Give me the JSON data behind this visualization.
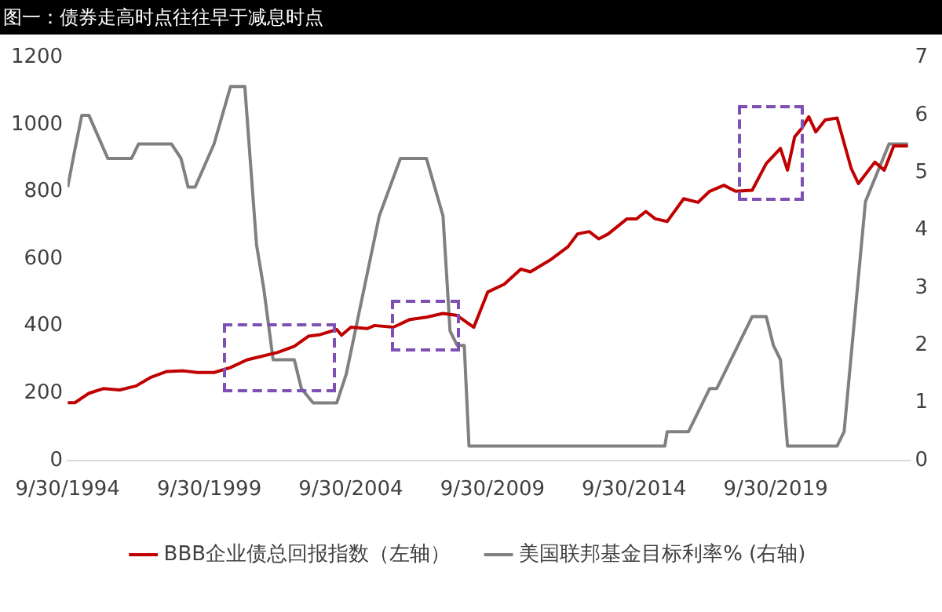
{
  "chart_data": {
    "type": "line",
    "title": "图一：债券走高时点往往早于减息时点",
    "xlim": [
      "1994-09-30",
      "2024-06-30"
    ],
    "xticks": [
      {
        "value": "1994-09-30",
        "label": "9/30/1994"
      },
      {
        "value": "1999-09-30",
        "label": "9/30/1999"
      },
      {
        "value": "2004-09-30",
        "label": "9/30/2004"
      },
      {
        "value": "2009-09-30",
        "label": "9/30/2009"
      },
      {
        "value": "2014-09-30",
        "label": "9/30/2014"
      },
      {
        "value": "2019-09-30",
        "label": "9/30/2019"
      }
    ],
    "ylim": [
      0,
      1200
    ],
    "yticks": [
      0,
      200,
      400,
      600,
      800,
      1000,
      1200
    ],
    "y2lim": [
      0,
      7
    ],
    "y2ticks": [
      0,
      1,
      2,
      3,
      4,
      5,
      6,
      7
    ],
    "grid": false,
    "legend": "bottom",
    "marker": "none",
    "series": [
      {
        "name": "BBB企业债总回报指数（左轴）",
        "color": "#c00000",
        "axis": "y",
        "x": [
          "1994-09-30",
          "1995-01",
          "1995-07",
          "1996-01",
          "1996-08",
          "1997-03",
          "1997-09",
          "1998-04",
          "1998-11",
          "1999-05",
          "1999-12",
          "2000-07",
          "2001-02",
          "2001-08",
          "2002-03",
          "2002-10",
          "2003-04",
          "2003-09",
          "2004-04",
          "2004-06",
          "2004-10",
          "2005-05",
          "2005-08",
          "2006-04",
          "2006-11",
          "2007-06",
          "2008-01",
          "2008-07",
          "2009-02",
          "2009-08",
          "2010-03",
          "2010-10",
          "2011-02",
          "2011-11",
          "2012-06",
          "2012-10",
          "2013-03",
          "2013-07",
          "2013-11",
          "2014-07",
          "2014-11",
          "2015-03",
          "2015-07",
          "2015-12",
          "2016-07",
          "2017-01",
          "2017-06",
          "2017-12",
          "2018-05",
          "2018-12",
          "2019-06",
          "2019-12",
          "2020-03",
          "2020-06",
          "2020-09",
          "2020-12",
          "2021-03",
          "2021-07",
          "2021-12",
          "2022-06",
          "2022-09",
          "2023-04",
          "2023-08",
          "2023-12",
          "2024-06"
        ],
        "values": [
          172,
          172,
          200,
          214,
          210,
          222,
          247,
          265,
          267,
          262,
          262,
          277,
          300,
          310,
          322,
          340,
          370,
          375,
          390,
          373,
          397,
          393,
          402,
          397,
          420,
          427,
          438,
          432,
          397,
          502,
          525,
          570,
          562,
          600,
          637,
          675,
          682,
          660,
          675,
          720,
          720,
          742,
          720,
          712,
          780,
          769,
          802,
          820,
          802,
          805,
          885,
          930,
          865,
          964,
          990,
          1024,
          979,
          1015,
          1020,
          870,
          825,
          889,
          865,
          937,
          937
        ]
      },
      {
        "name": "美国联邦基金目标利率% (右轴)",
        "color": "#808080",
        "axis": "y2",
        "x": [
          "1994-09-30",
          "1995-01",
          "1995-04",
          "1995-07",
          "1996-03",
          "1997-01",
          "1997-04",
          "1998-06",
          "1998-10",
          "1999-01",
          "1999-04",
          "1999-12",
          "2000-07",
          "2001-01",
          "2001-06",
          "2001-09",
          "2002-01",
          "2002-10",
          "2003-01",
          "2003-06",
          "2004-04",
          "2004-08",
          "2005-10",
          "2006-07",
          "2007-06",
          "2008-01",
          "2008-04",
          "2008-07",
          "2008-10",
          "2008-12",
          "2015-11",
          "2015-12",
          "2016-09",
          "2017-06",
          "2017-09",
          "2018-12",
          "2019-06",
          "2019-09",
          "2019-12",
          "2020-03",
          "2021-12",
          "2022-03",
          "2022-12",
          "2023-10",
          "2024-06"
        ],
        "values": [
          4.75,
          5.4,
          6,
          6,
          5.25,
          5.25,
          5.5,
          5.5,
          5.25,
          4.75,
          4.75,
          5.5,
          6.5,
          6.5,
          3.75,
          3,
          1.75,
          1.75,
          1.25,
          1,
          1,
          1.5,
          4.25,
          5.25,
          5.25,
          4.25,
          2.25,
          2,
          2,
          0.25,
          0.25,
          0.5,
          0.5,
          1.25,
          1.25,
          2.5,
          2.5,
          2,
          1.75,
          0.25,
          0.25,
          0.5,
          4.5,
          5.5,
          5.5
        ]
      }
    ]
  }
}
